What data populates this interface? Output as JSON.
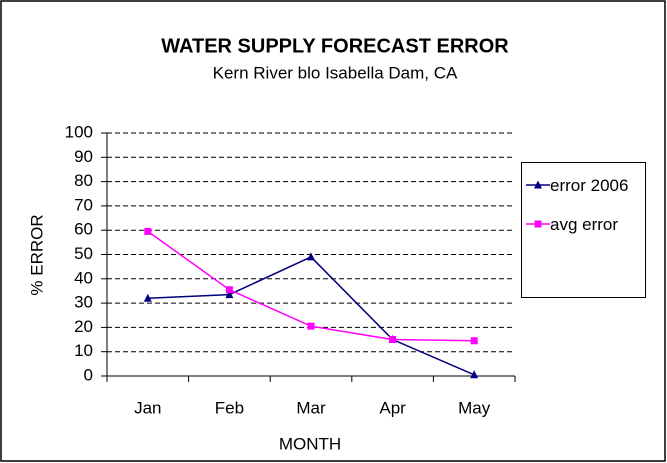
{
  "chart_data": {
    "type": "line",
    "title": "WATER SUPPLY FORECAST ERROR",
    "subtitle": "Kern River blo Isabella Dam, CA",
    "x_label": "MONTH",
    "y_label": "% ERROR",
    "categories": [
      "Jan",
      "Feb",
      "Mar",
      "Apr",
      "May"
    ],
    "series": [
      {
        "name": "error 2006",
        "color": "#000080",
        "marker": "triangle",
        "values": [
          32,
          33.5,
          49,
          15,
          0.5
        ]
      },
      {
        "name": "avg error",
        "color": "#ff00ff",
        "marker": "square",
        "values": [
          59.5,
          35.5,
          20.5,
          15,
          14.5
        ]
      }
    ],
    "ylim": [
      0,
      100
    ],
    "yticks": [
      0,
      10,
      20,
      30,
      40,
      50,
      60,
      70,
      80,
      90,
      100
    ],
    "grid": true,
    "legend": "right"
  }
}
